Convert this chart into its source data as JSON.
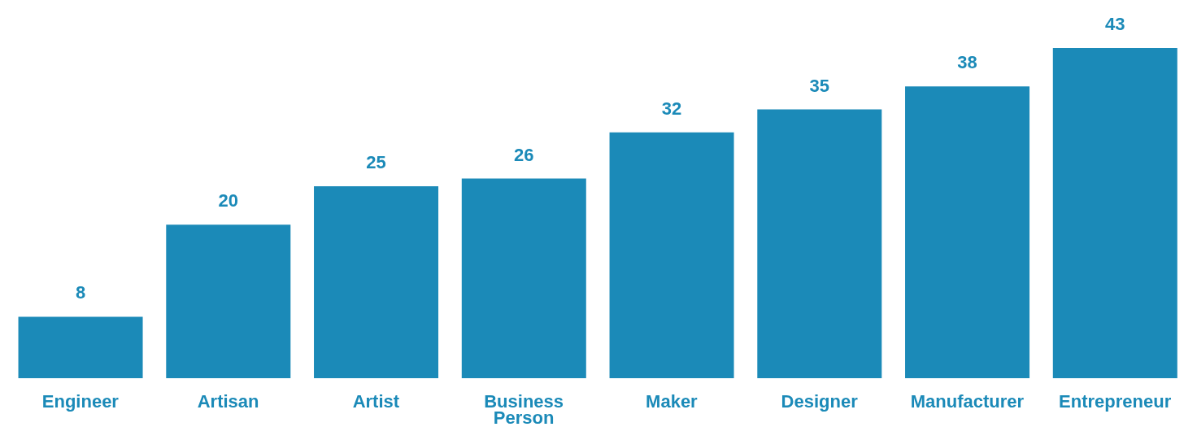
{
  "chart_data": {
    "type": "bar",
    "categories": [
      "Engineer",
      "Artisan",
      "Artist",
      "Business Person",
      "Maker",
      "Designer",
      "Manufacturer",
      "Entrepreneur"
    ],
    "values": [
      8,
      20,
      25,
      26,
      32,
      35,
      38,
      43
    ],
    "color": "#1b8ab8",
    "data_labels": true
  }
}
